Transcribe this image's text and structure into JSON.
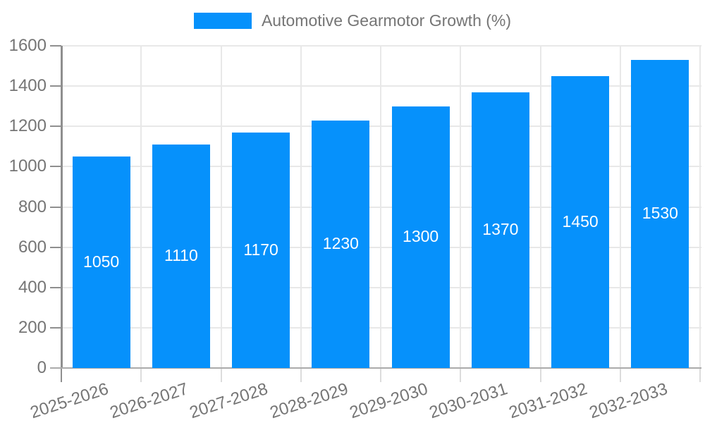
{
  "legend": {
    "position": "top",
    "items": [
      {
        "label": "Automotive Gearmotor Growth (%)",
        "color": "#0691fb"
      }
    ]
  },
  "chart_data": {
    "type": "bar",
    "title": "Automotive Gearmotor Growth (%)",
    "categories": [
      "2025-2026",
      "2026-2027",
      "2027-2028",
      "2028-2029",
      "2029-2030",
      "2030-2031",
      "2031-2032",
      "2032-2033"
    ],
    "values": [
      1050,
      1110,
      1170,
      1230,
      1300,
      1370,
      1450,
      1530
    ],
    "xlabel": "",
    "ylabel": "",
    "ylim": [
      0,
      1600
    ],
    "yticks": [
      0,
      200,
      400,
      600,
      800,
      1000,
      1200,
      1400,
      1600
    ],
    "grid": true,
    "legend_position": "top",
    "bar_color": "#0691fb",
    "bar_label_color": "#ffffff",
    "axis_text_color": "#757575",
    "gridline_color": "#e8e8e8",
    "axis_line_color": "#8f8f8f",
    "zero_line_color": "#ababab",
    "minor_tick_color": "#dcdcdc"
  }
}
